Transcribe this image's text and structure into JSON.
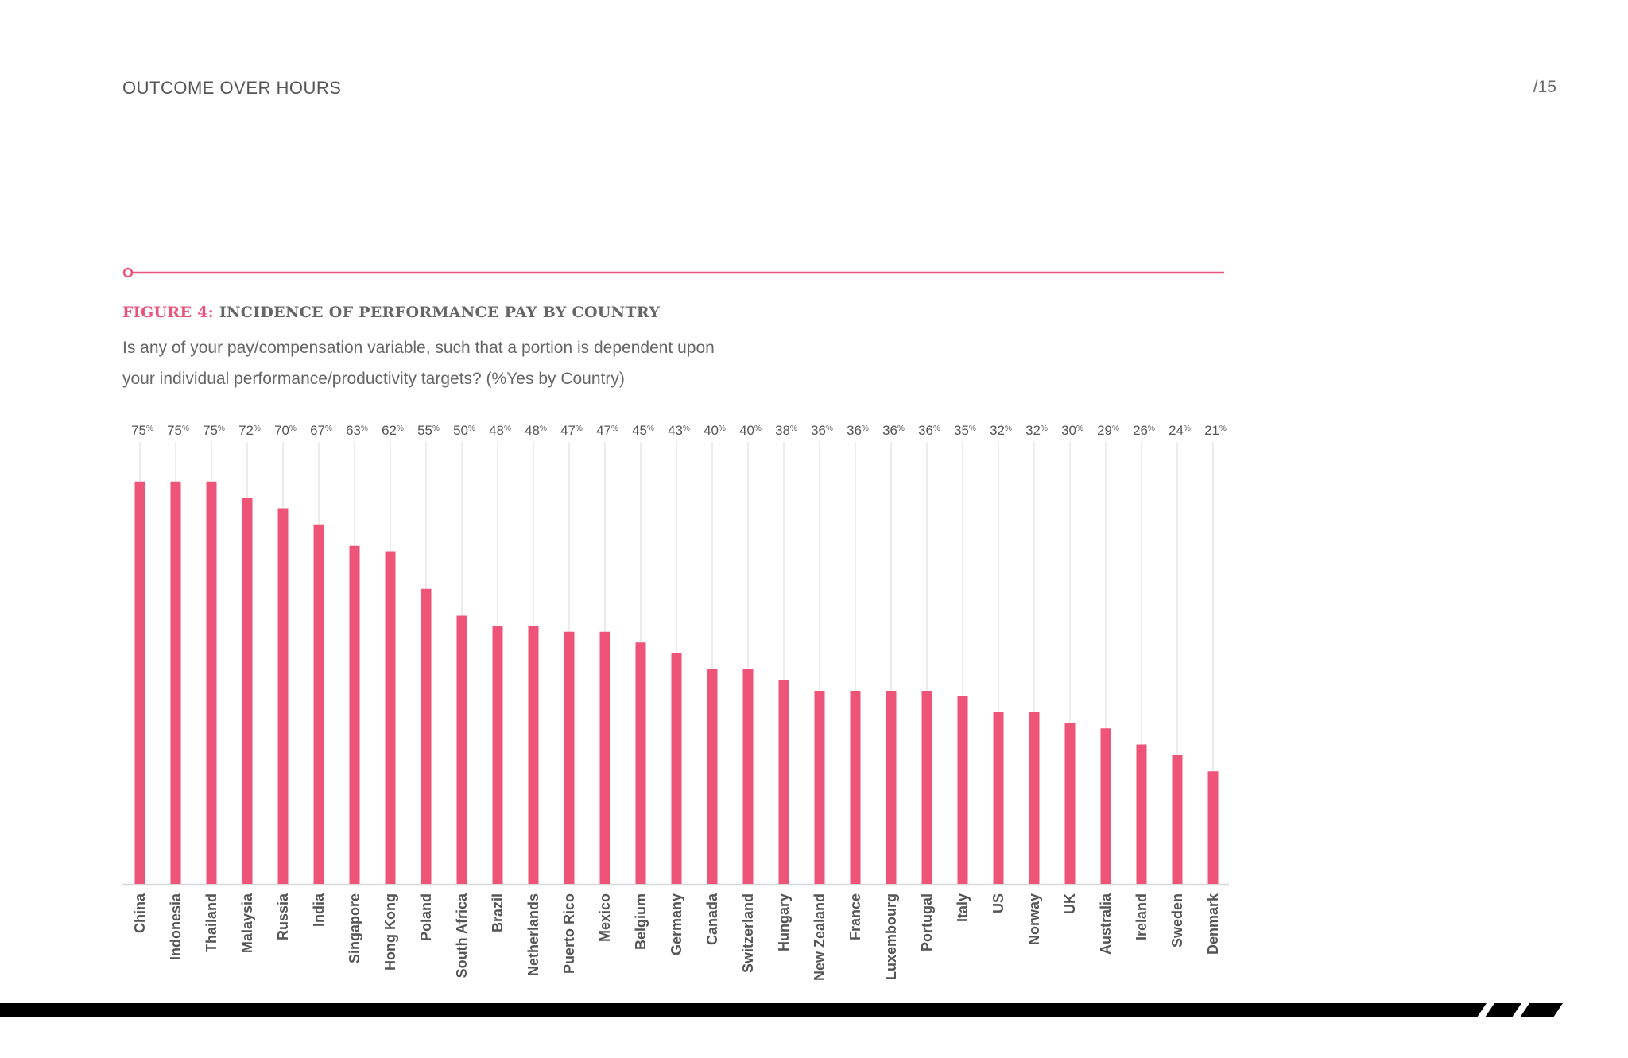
{
  "header": {
    "title": "OUTCOME OVER HOURS",
    "page_number": "/15"
  },
  "figure": {
    "label": "FIGURE 4:",
    "title": "INCIDENCE OF PERFORMANCE PAY BY COUNTRY",
    "subtitle_line1": "Is any of your pay/compensation variable, such that a portion is dependent upon",
    "subtitle_line2": "your individual performance/productivity targets? (%Yes by Country)"
  },
  "colors": {
    "accent": "#e9557a",
    "bar": "#ee5478",
    "gridline": "#d9d9d9",
    "footer": "#000000"
  },
  "chart_data": {
    "type": "bar",
    "categories": [
      "China",
      "Indonesia",
      "Thailand",
      "Malaysia",
      "Russia",
      "India",
      "Singapore",
      "Hong Kong",
      "Poland",
      "South Africa",
      "Brazil",
      "Netherlands",
      "Puerto Rico",
      "Mexico",
      "Belgium",
      "Germany",
      "Canada",
      "Switzerland",
      "Hungary",
      "New Zealand",
      "France",
      "Luxembourg",
      "Portugal",
      "Italy",
      "US",
      "Norway",
      "UK",
      "Australia",
      "Ireland",
      "Sweden",
      "Denmark"
    ],
    "values": [
      75,
      75,
      75,
      72,
      70,
      67,
      63,
      62,
      55,
      50,
      48,
      48,
      47,
      47,
      45,
      43,
      40,
      40,
      38,
      36,
      36,
      36,
      36,
      35,
      32,
      32,
      30,
      29,
      26,
      24,
      21
    ],
    "unit": "%",
    "ylim": [
      0,
      80
    ],
    "grid": "vertical per bar",
    "data_labels": "top"
  }
}
